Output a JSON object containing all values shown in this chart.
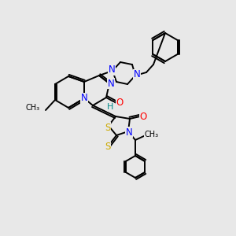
{
  "bg_color": "#e8e8e8",
  "atom_colors": {
    "N": "#0000ff",
    "O": "#ff0000",
    "S": "#ccaa00",
    "C": "#000000",
    "H": "#008888"
  },
  "bond_color": "#000000",
  "lw": 1.4,
  "fs": 8.5,
  "fig_size": [
    3.0,
    3.0
  ],
  "dpi": 100
}
